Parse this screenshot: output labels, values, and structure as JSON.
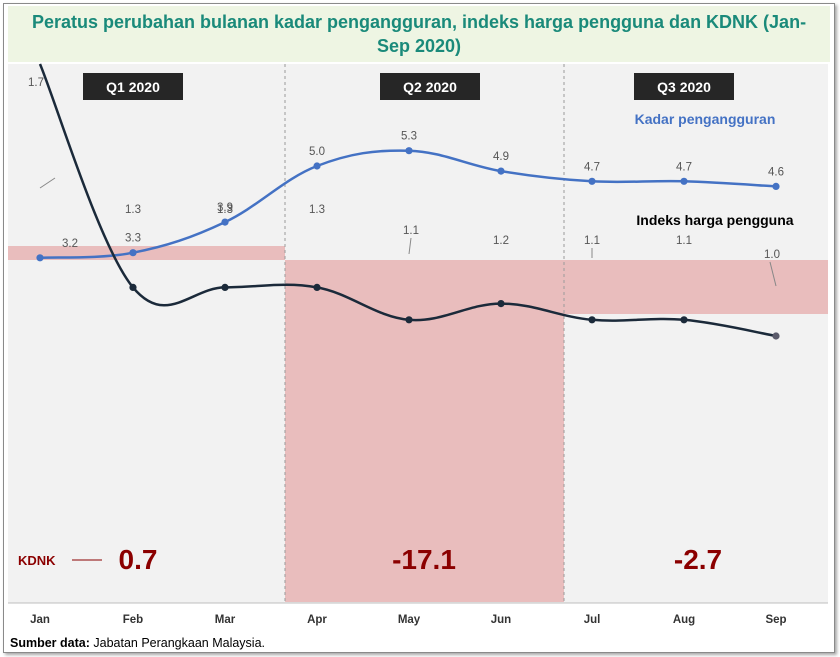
{
  "title": "Peratus perubahan bulanan kadar pengangguran, indeks harga pengguna dan KDNK (Jan-Sep 2020)",
  "source_label": "Sumber data:",
  "source_text": "Jabatan Perangkaan Malaysia.",
  "colors": {
    "unemployment": "#4472c4",
    "cpi": "#1b2a3a",
    "gdp_text": "#8b0000",
    "gdp_fill": "#e8b4b4",
    "quarter_bg": "#f2f2f2",
    "quarter_label_bg": "#262626",
    "title_color": "#1a8a7a"
  },
  "chart_data": {
    "type": "line",
    "x": [
      "Jan",
      "Feb",
      "Mar",
      "Apr",
      "May",
      "Jun",
      "Jul",
      "Aug",
      "Sep"
    ],
    "series": [
      {
        "name": "Kadar pengangguran",
        "values": [
          3.2,
          3.3,
          3.9,
          5.0,
          5.3,
          4.9,
          4.7,
          4.7,
          4.6
        ]
      },
      {
        "name": "Indeks harga pengguna",
        "values": [
          1.7,
          1.3,
          1.3,
          1.3,
          1.1,
          1.2,
          1.1,
          1.1,
          1.0
        ]
      }
    ],
    "quarters": [
      {
        "label": "Q1 2020",
        "gdp": 0.7,
        "gdp_label": "0.7"
      },
      {
        "label": "Q2 2020",
        "gdp": -17.1,
        "gdp_label": "-17.1"
      },
      {
        "label": "Q3 2020",
        "gdp": -2.7,
        "gdp_label": "-2.7"
      }
    ],
    "gdp_series_label": "KDNK",
    "legend": "inline-labels"
  }
}
